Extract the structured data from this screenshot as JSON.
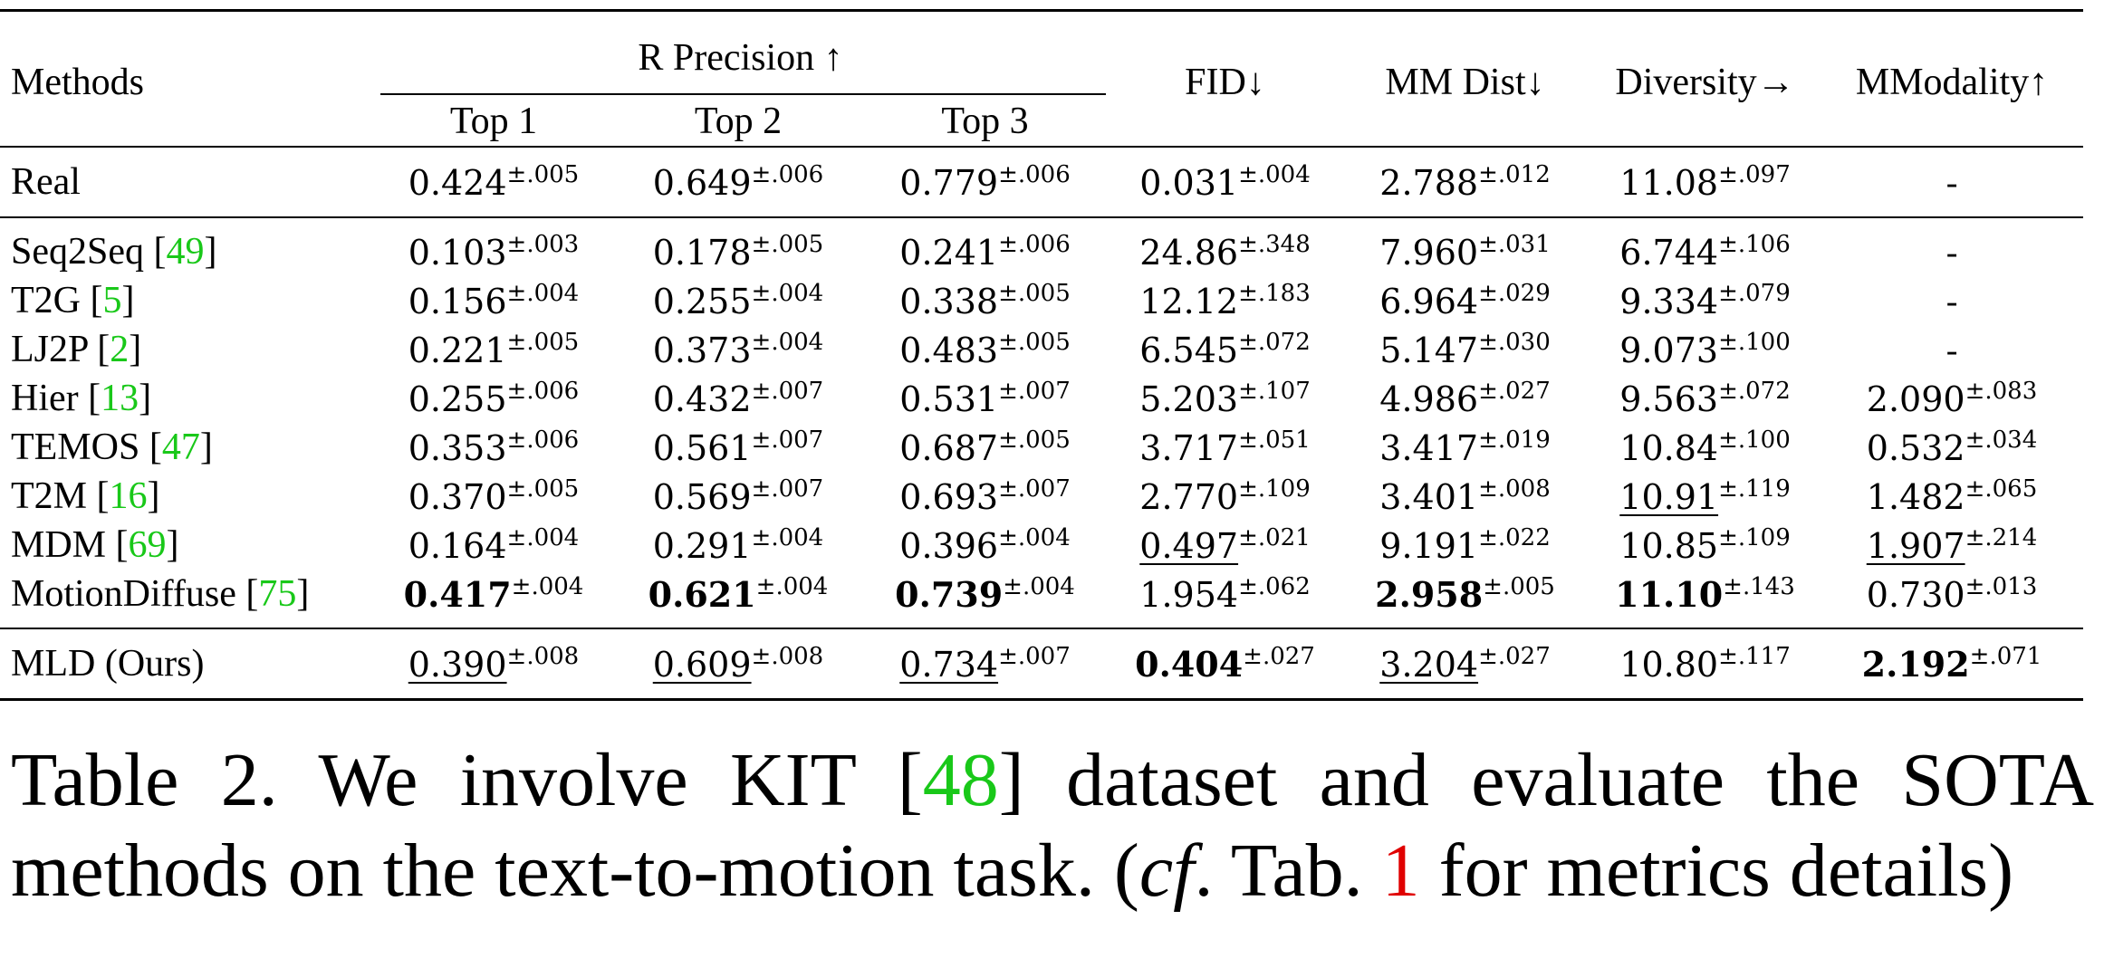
{
  "table": {
    "header": {
      "methods": "Methods",
      "r_precision": "R Precision ↑",
      "top1": "Top 1",
      "top2": "Top 2",
      "top3": "Top 3",
      "fid": "FID↓",
      "mm_dist": "MM Dist↓",
      "diversity": "Diversity→",
      "mmodality": "MModality↑"
    },
    "real": {
      "name": "Real",
      "cells": [
        {
          "v": "0.424",
          "pm": "±.005"
        },
        {
          "v": "0.649",
          "pm": "±.006"
        },
        {
          "v": "0.779",
          "pm": "±.006"
        },
        {
          "v": "0.031",
          "pm": "±.004"
        },
        {
          "v": "2.788",
          "pm": "±.012"
        },
        {
          "v": "11.08",
          "pm": "±.097"
        },
        {
          "v": "-",
          "pm": ""
        }
      ]
    },
    "baselines": [
      {
        "name": "Seq2Seq [",
        "ref": "49",
        "tail": "]",
        "cells": [
          {
            "v": "0.103",
            "pm": "±.003"
          },
          {
            "v": "0.178",
            "pm": "±.005"
          },
          {
            "v": "0.241",
            "pm": "±.006"
          },
          {
            "v": "24.86",
            "pm": "±.348"
          },
          {
            "v": "7.960",
            "pm": "±.031"
          },
          {
            "v": "6.744",
            "pm": "±.106"
          },
          {
            "v": "-",
            "pm": ""
          }
        ]
      },
      {
        "name": "T2G [",
        "ref": "5",
        "tail": "]",
        "cells": [
          {
            "v": "0.156",
            "pm": "±.004"
          },
          {
            "v": "0.255",
            "pm": "±.004"
          },
          {
            "v": "0.338",
            "pm": "±.005"
          },
          {
            "v": "12.12",
            "pm": "±.183"
          },
          {
            "v": "6.964",
            "pm": "±.029"
          },
          {
            "v": "9.334",
            "pm": "±.079"
          },
          {
            "v": "-",
            "pm": ""
          }
        ]
      },
      {
        "name": "LJ2P [",
        "ref": "2",
        "tail": "]",
        "cells": [
          {
            "v": "0.221",
            "pm": "±.005"
          },
          {
            "v": "0.373",
            "pm": "±.004"
          },
          {
            "v": "0.483",
            "pm": "±.005"
          },
          {
            "v": "6.545",
            "pm": "±.072"
          },
          {
            "v": "5.147",
            "pm": "±.030"
          },
          {
            "v": "9.073",
            "pm": "±.100"
          },
          {
            "v": "-",
            "pm": ""
          }
        ]
      },
      {
        "name": "Hier [",
        "ref": "13",
        "tail": "]",
        "cells": [
          {
            "v": "0.255",
            "pm": "±.006"
          },
          {
            "v": "0.432",
            "pm": "±.007"
          },
          {
            "v": "0.531",
            "pm": "±.007"
          },
          {
            "v": "5.203",
            "pm": "±.107"
          },
          {
            "v": "4.986",
            "pm": "±.027"
          },
          {
            "v": "9.563",
            "pm": "±.072"
          },
          {
            "v": "2.090",
            "pm": "±.083"
          }
        ]
      },
      {
        "name": "TEMOS [",
        "ref": "47",
        "tail": "]",
        "cells": [
          {
            "v": "0.353",
            "pm": "±.006"
          },
          {
            "v": "0.561",
            "pm": "±.007"
          },
          {
            "v": "0.687",
            "pm": "±.005"
          },
          {
            "v": "3.717",
            "pm": "±.051"
          },
          {
            "v": "3.417",
            "pm": "±.019"
          },
          {
            "v": "10.84",
            "pm": "±.100"
          },
          {
            "v": "0.532",
            "pm": "±.034"
          }
        ]
      },
      {
        "name": "T2M [",
        "ref": "16",
        "tail": "]",
        "cells": [
          {
            "v": "0.370",
            "pm": "±.005"
          },
          {
            "v": "0.569",
            "pm": "±.007"
          },
          {
            "v": "0.693",
            "pm": "±.007"
          },
          {
            "v": "2.770",
            "pm": "±.109"
          },
          {
            "v": "3.401",
            "pm": "±.008"
          },
          {
            "v": "10.91",
            "pm": "±.119",
            "underline": true
          },
          {
            "v": "1.482",
            "pm": "±.065"
          }
        ]
      },
      {
        "name": "MDM [",
        "ref": "69",
        "tail": "]",
        "cells": [
          {
            "v": "0.164",
            "pm": "±.004"
          },
          {
            "v": "0.291",
            "pm": "±.004"
          },
          {
            "v": "0.396",
            "pm": "±.004"
          },
          {
            "v": "0.497",
            "pm": "±.021",
            "underline": true
          },
          {
            "v": "9.191",
            "pm": "±.022"
          },
          {
            "v": "10.85",
            "pm": "±.109"
          },
          {
            "v": "1.907",
            "pm": "±.214",
            "underline": true
          }
        ]
      },
      {
        "name": "MotionDiffuse [",
        "ref": "75",
        "tail": "]",
        "cells": [
          {
            "v": "0.417",
            "pm": "±.004",
            "bold": true
          },
          {
            "v": "0.621",
            "pm": "±.004",
            "bold": true
          },
          {
            "v": "0.739",
            "pm": "±.004",
            "bold": true
          },
          {
            "v": "1.954",
            "pm": "±.062"
          },
          {
            "v": "2.958",
            "pm": "±.005",
            "bold": true
          },
          {
            "v": "11.10",
            "pm": "±.143",
            "bold": true
          },
          {
            "v": "0.730",
            "pm": "±.013"
          }
        ]
      }
    ],
    "ours": {
      "name": "MLD (Ours)",
      "cells": [
        {
          "v": "0.390",
          "pm": "±.008",
          "underline": true
        },
        {
          "v": "0.609",
          "pm": "±.008",
          "underline": true
        },
        {
          "v": "0.734",
          "pm": "±.007",
          "underline": true
        },
        {
          "v": "0.404",
          "pm": "±.027",
          "bold": true
        },
        {
          "v": "3.204",
          "pm": "±.027",
          "underline": true
        },
        {
          "v": "10.80",
          "pm": "±.117"
        },
        {
          "v": "2.192",
          "pm": "±.071",
          "bold": true
        }
      ]
    }
  },
  "caption": {
    "part1": "Table 2. We involve KIT [",
    "ref_kit": "48",
    "part2": "] dataset and evaluate the SOTA methods on the text-to-motion task. (",
    "cf": "cf",
    "part3": ". Tab. ",
    "ref_tab": "1",
    "part4": " for metrics details)"
  },
  "colors": {
    "citation_green": "#19c819",
    "reference_red": "#e00000"
  }
}
